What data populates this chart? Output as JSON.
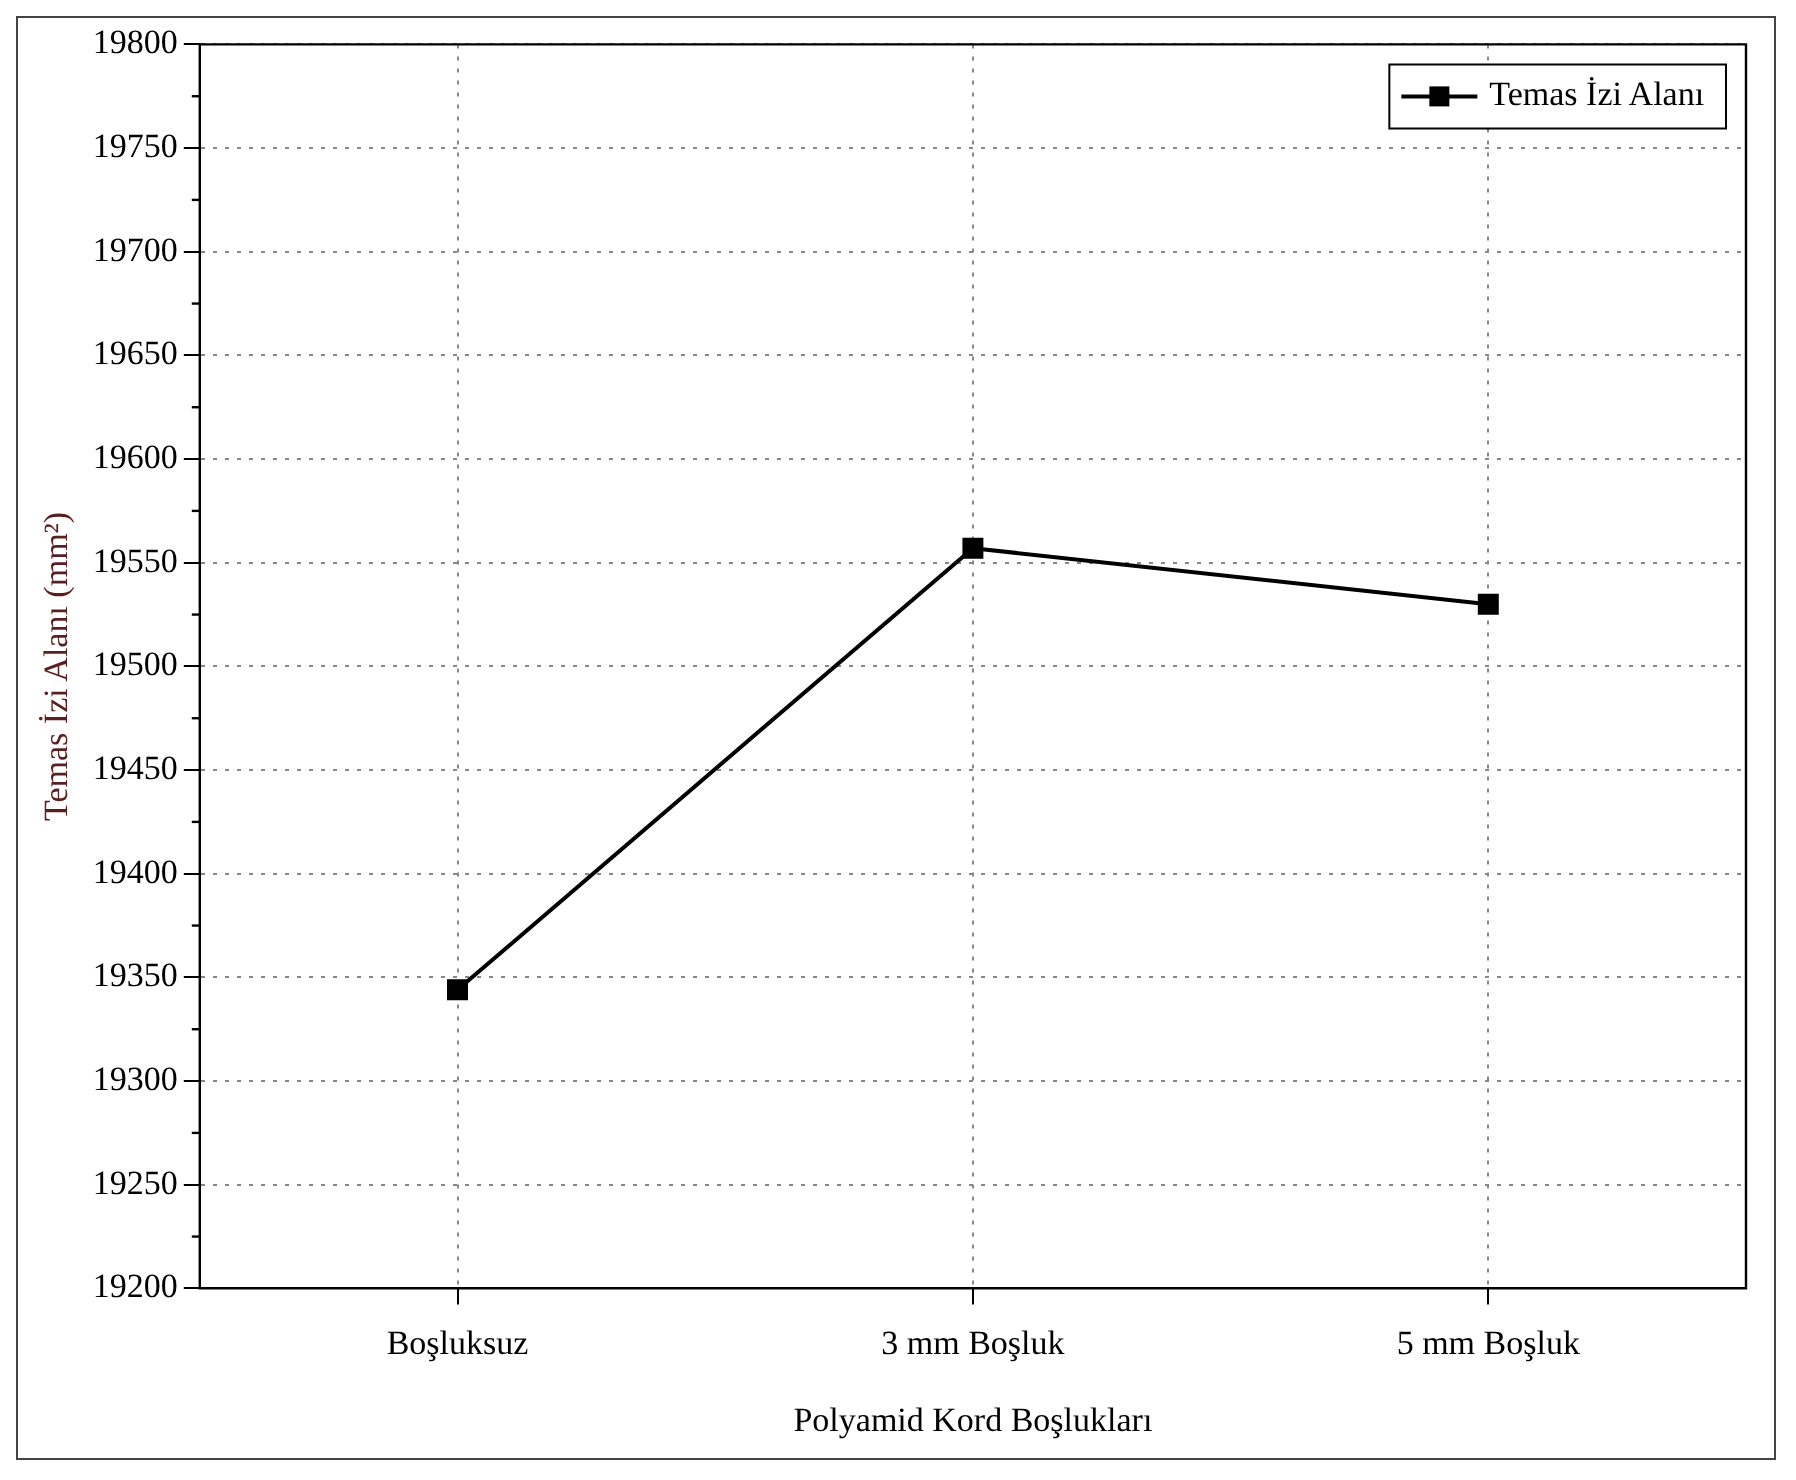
{
  "chart_data": {
    "type": "line",
    "xlabel": "Polyamid Kord Boşlukları",
    "ylabel": "Temas İzi Alanı (mm²)",
    "categories": [
      "Boşluksuz",
      "3 mm Boşluk",
      "5 mm Boşluk"
    ],
    "series": [
      {
        "name": "Temas İzi Alanı",
        "color": "#000000",
        "values": [
          19344,
          19557,
          19530
        ]
      }
    ],
    "ylim": [
      19200,
      19800
    ],
    "yticks": [
      19200,
      19250,
      19300,
      19350,
      19400,
      19450,
      19500,
      19550,
      19600,
      19650,
      19700,
      19750,
      19800
    ],
    "grid": true,
    "legend": "top right",
    "marker": "square",
    "line_style": "solid"
  }
}
